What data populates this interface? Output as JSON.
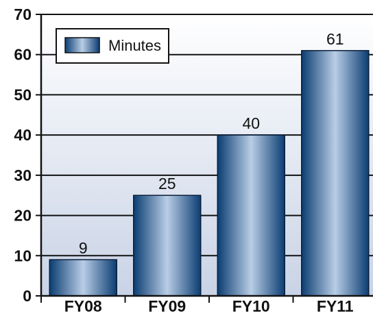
{
  "chart_data": {
    "type": "bar",
    "title": "",
    "xlabel": "",
    "ylabel": "",
    "categories": [
      "FY08",
      "FY09",
      "FY10",
      "FY11"
    ],
    "series": [
      {
        "name": "Minutes",
        "values": [
          9,
          25,
          40,
          61
        ]
      }
    ],
    "data_labels": [
      "9",
      "25",
      "40",
      "61"
    ],
    "ylim": [
      0,
      70
    ],
    "yticks": [
      0,
      10,
      20,
      30,
      40,
      50,
      60,
      70
    ],
    "ytick_labels": [
      "0",
      "10",
      "20",
      "30",
      "40",
      "50",
      "60",
      "70"
    ],
    "grid": true,
    "legend": {
      "position": "top-left",
      "entries": [
        "Minutes"
      ]
    },
    "colors": {
      "bar_dark": "#0b3d72",
      "bar_light": "#b9cde6",
      "background_top": "#ffffff",
      "background_bottom": "#c9d3e6",
      "axis": "#111111",
      "grid": "#111111"
    }
  }
}
